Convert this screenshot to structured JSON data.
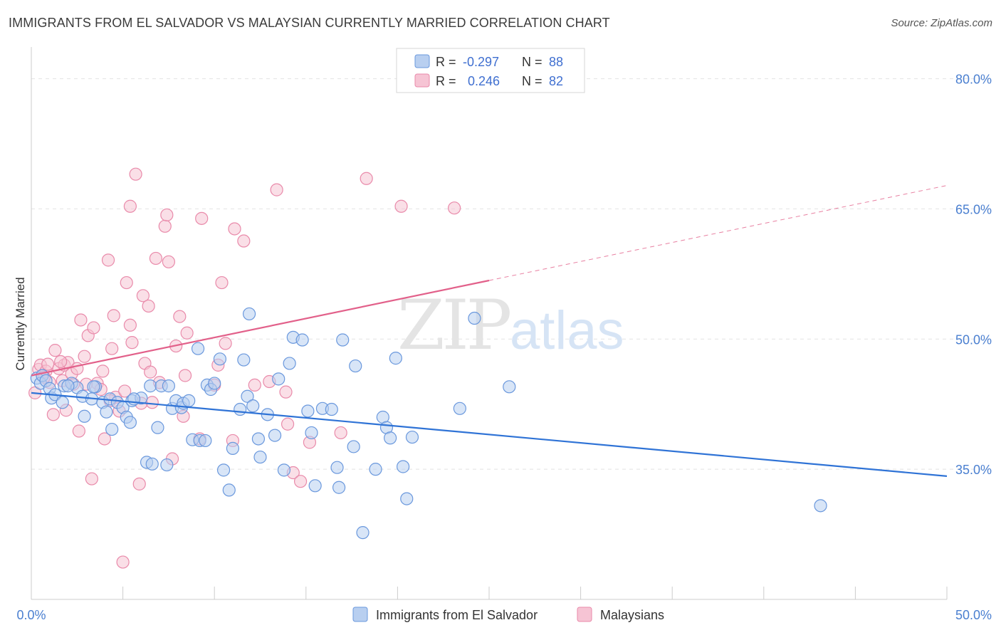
{
  "header": {
    "title": "IMMIGRANTS FROM EL SALVADOR VS MALAYSIAN CURRENTLY MARRIED CORRELATION CHART",
    "source": "Source: ZipAtlas.com"
  },
  "watermark": {
    "zip": "ZIP",
    "atlas": "atlas"
  },
  "legend_top": {
    "rows": [
      {
        "r_label": "R =",
        "r_value": "-0.297",
        "n_label": "N =",
        "n_value": "88"
      },
      {
        "r_label": "R =",
        "r_value": "0.246",
        "n_label": "N =",
        "n_value": "82"
      }
    ]
  },
  "legend_bottom": {
    "items": [
      {
        "label": "Immigrants from El Salvador"
      },
      {
        "label": "Malaysians"
      }
    ]
  },
  "colors": {
    "blue_fill": "#b8cff0",
    "blue_stroke": "#6a98dd",
    "blue_line": "#2f73d6",
    "pink_fill": "#f6c4d4",
    "pink_stroke": "#e98aaa",
    "pink_line": "#e2608a",
    "grid": "#e2e2e2",
    "tick_text": "#4a7fd0"
  },
  "chart_data": {
    "type": "scatter",
    "title": "IMMIGRANTS FROM EL SALVADOR VS MALAYSIAN CURRENTLY MARRIED CORRELATION CHART",
    "ylabel": "Currently Married",
    "xlabel": "",
    "xlim": [
      0,
      50
    ],
    "ylim": [
      20,
      83
    ],
    "x_tick_labels": [
      "0.0%",
      "50.0%"
    ],
    "y_ticks": [
      35,
      50,
      65,
      80
    ],
    "y_tick_labels": [
      "35.0%",
      "50.0%",
      "65.0%",
      "80.0%"
    ],
    "grid": true,
    "legend_placement": "top-center and bottom",
    "series": [
      {
        "name": "Immigrants from El Salvador",
        "R": -0.297,
        "N": 88,
        "trend": {
          "x": [
            0,
            50
          ],
          "y": [
            43.8,
            34.2
          ],
          "dashed_from": null
        },
        "points": [
          [
            0.3,
            45.5
          ],
          [
            0.5,
            44.9
          ],
          [
            0.6,
            45.8
          ],
          [
            0.8,
            45.2
          ],
          [
            1.0,
            44.3
          ],
          [
            1.1,
            43.2
          ],
          [
            1.3,
            43.6
          ],
          [
            1.7,
            42.7
          ],
          [
            1.8,
            44.6
          ],
          [
            2.2,
            44.9
          ],
          [
            2.5,
            44.4
          ],
          [
            2.8,
            43.4
          ],
          [
            2.9,
            41.1
          ],
          [
            3.3,
            43.1
          ],
          [
            3.5,
            44.5
          ],
          [
            3.9,
            42.7
          ],
          [
            4.1,
            41.6
          ],
          [
            4.3,
            43.1
          ],
          [
            4.4,
            39.6
          ],
          [
            4.7,
            42.7
          ],
          [
            5.0,
            42.1
          ],
          [
            5.2,
            41.0
          ],
          [
            5.4,
            40.4
          ],
          [
            5.5,
            42.9
          ],
          [
            6.0,
            43.2
          ],
          [
            6.3,
            35.8
          ],
          [
            6.6,
            35.6
          ],
          [
            6.5,
            44.6
          ],
          [
            6.9,
            39.8
          ],
          [
            7.1,
            44.6
          ],
          [
            7.4,
            35.5
          ],
          [
            7.7,
            42.0
          ],
          [
            7.9,
            42.9
          ],
          [
            8.2,
            42.1
          ],
          [
            8.3,
            42.6
          ],
          [
            8.6,
            42.9
          ],
          [
            8.8,
            38.4
          ],
          [
            9.1,
            48.9
          ],
          [
            9.2,
            38.3
          ],
          [
            9.6,
            44.7
          ],
          [
            9.8,
            44.2
          ],
          [
            10.0,
            44.9
          ],
          [
            10.3,
            47.7
          ],
          [
            10.5,
            34.9
          ],
          [
            10.8,
            32.6
          ],
          [
            11.0,
            37.4
          ],
          [
            11.4,
            41.9
          ],
          [
            11.6,
            47.6
          ],
          [
            11.8,
            43.4
          ],
          [
            12.1,
            42.3
          ],
          [
            11.9,
            52.9
          ],
          [
            12.4,
            38.5
          ],
          [
            12.5,
            36.4
          ],
          [
            12.9,
            41.3
          ],
          [
            13.3,
            38.9
          ],
          [
            13.5,
            45.4
          ],
          [
            13.8,
            34.9
          ],
          [
            14.1,
            47.2
          ],
          [
            14.3,
            50.2
          ],
          [
            14.8,
            49.9
          ],
          [
            15.1,
            41.7
          ],
          [
            15.3,
            39.2
          ],
          [
            15.5,
            33.1
          ],
          [
            15.9,
            42.0
          ],
          [
            16.4,
            41.9
          ],
          [
            16.7,
            35.2
          ],
          [
            16.8,
            32.9
          ],
          [
            17.0,
            49.9
          ],
          [
            17.6,
            37.6
          ],
          [
            17.7,
            46.9
          ],
          [
            18.1,
            27.7
          ],
          [
            18.8,
            35.0
          ],
          [
            19.2,
            41.0
          ],
          [
            19.4,
            39.8
          ],
          [
            19.6,
            38.6
          ],
          [
            19.9,
            47.8
          ],
          [
            20.3,
            35.3
          ],
          [
            20.5,
            31.6
          ],
          [
            20.8,
            38.7
          ],
          [
            23.4,
            42.0
          ],
          [
            24.2,
            52.4
          ],
          [
            26.1,
            44.5
          ],
          [
            43.1,
            30.8
          ],
          [
            2.0,
            44.6
          ],
          [
            3.4,
            44.5
          ],
          [
            5.6,
            43.1
          ],
          [
            7.5,
            44.6
          ],
          [
            9.5,
            38.3
          ]
        ]
      },
      {
        "name": "Malaysians",
        "R": 0.246,
        "N": 82,
        "trend": {
          "x": [
            0,
            50
          ],
          "y": [
            45.8,
            67.7
          ],
          "dashed_from": 25
        },
        "points": [
          [
            0.2,
            43.8
          ],
          [
            0.4,
            46.5
          ],
          [
            0.5,
            47.0
          ],
          [
            0.6,
            45.8
          ],
          [
            0.8,
            46.3
          ],
          [
            0.9,
            47.1
          ],
          [
            1.0,
            45.0
          ],
          [
            1.2,
            41.3
          ],
          [
            1.3,
            48.7
          ],
          [
            1.5,
            46.6
          ],
          [
            1.7,
            45.2
          ],
          [
            1.8,
            47.0
          ],
          [
            1.9,
            41.8
          ],
          [
            2.0,
            47.3
          ],
          [
            2.2,
            46.0
          ],
          [
            2.3,
            44.8
          ],
          [
            2.6,
            39.4
          ],
          [
            2.7,
            52.2
          ],
          [
            2.9,
            48.0
          ],
          [
            3.1,
            50.4
          ],
          [
            3.3,
            33.9
          ],
          [
            3.4,
            51.3
          ],
          [
            3.6,
            44.9
          ],
          [
            3.8,
            44.2
          ],
          [
            3.9,
            46.3
          ],
          [
            4.0,
            38.5
          ],
          [
            4.2,
            59.1
          ],
          [
            4.4,
            48.9
          ],
          [
            4.5,
            52.7
          ],
          [
            4.6,
            43.3
          ],
          [
            4.8,
            41.7
          ],
          [
            5.0,
            24.3
          ],
          [
            5.2,
            56.5
          ],
          [
            5.4,
            51.6
          ],
          [
            5.5,
            49.6
          ],
          [
            5.7,
            69.0
          ],
          [
            5.9,
            33.3
          ],
          [
            6.1,
            55.0
          ],
          [
            6.2,
            47.2
          ],
          [
            6.4,
            53.8
          ],
          [
            6.5,
            46.2
          ],
          [
            6.6,
            42.7
          ],
          [
            6.8,
            59.3
          ],
          [
            7.0,
            45.0
          ],
          [
            7.3,
            63.0
          ],
          [
            7.5,
            58.9
          ],
          [
            7.7,
            36.2
          ],
          [
            7.9,
            49.2
          ],
          [
            8.1,
            52.6
          ],
          [
            8.3,
            41.1
          ],
          [
            8.4,
            45.8
          ],
          [
            8.5,
            50.7
          ],
          [
            9.2,
            38.5
          ],
          [
            9.3,
            63.9
          ],
          [
            10.0,
            44.7
          ],
          [
            10.2,
            47.0
          ],
          [
            10.4,
            56.5
          ],
          [
            10.6,
            49.5
          ],
          [
            11.0,
            38.3
          ],
          [
            11.1,
            62.7
          ],
          [
            11.6,
            61.3
          ],
          [
            12.2,
            44.7
          ],
          [
            13.0,
            45.1
          ],
          [
            13.4,
            67.2
          ],
          [
            13.9,
            43.9
          ],
          [
            14.0,
            40.2
          ],
          [
            14.3,
            34.6
          ],
          [
            14.7,
            33.6
          ],
          [
            16.9,
            39.2
          ],
          [
            18.3,
            68.5
          ],
          [
            20.2,
            65.3
          ],
          [
            23.1,
            65.1
          ],
          [
            5.4,
            65.3
          ],
          [
            5.1,
            44.0
          ],
          [
            3.0,
            44.8
          ],
          [
            1.6,
            47.4
          ],
          [
            0.7,
            45.6
          ],
          [
            2.5,
            46.6
          ],
          [
            7.4,
            64.3
          ],
          [
            4.3,
            42.9
          ],
          [
            6.0,
            42.6
          ],
          [
            15.2,
            38.1
          ]
        ]
      }
    ]
  }
}
